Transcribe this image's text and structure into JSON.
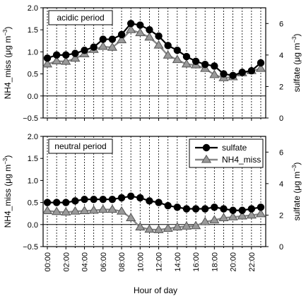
{
  "chart_data": [
    {
      "type": "line",
      "annotation": "acidic period",
      "x": [
        0,
        1,
        2,
        3,
        4,
        5,
        6,
        7,
        8,
        9,
        10,
        11,
        12,
        13,
        14,
        15,
        16,
        17,
        18,
        19,
        20,
        21,
        22,
        23
      ],
      "ylabel_left": "NH4_miss (μg m",
      "ylabel_right": "sulfate (μg m",
      "ylim_left": [
        -0.5,
        2.0
      ],
      "ylim_right": [
        0,
        7
      ],
      "yticks_left": [
        "−0.5",
        "0.0",
        "0.5",
        "1.0",
        "1.5",
        "2.0"
      ],
      "yticks_right": [
        "0",
        "2",
        "4",
        "6"
      ],
      "series": [
        {
          "name": "sulfate",
          "axis": "right",
          "marker": "circle",
          "color": "#000000",
          "values": [
            3.8,
            4.0,
            4.0,
            4.1,
            4.3,
            4.5,
            5.0,
            5.0,
            5.3,
            6.0,
            5.9,
            5.6,
            5.2,
            4.6,
            4.3,
            3.9,
            3.6,
            3.4,
            3.3,
            2.8,
            2.7,
            2.9,
            3.0,
            3.5
          ]
        },
        {
          "name": "NH4_miss",
          "axis": "left",
          "marker": "triangle",
          "color": "#888888",
          "values": [
            0.72,
            0.79,
            0.78,
            0.85,
            0.95,
            1.05,
            1.12,
            1.1,
            1.27,
            1.5,
            1.43,
            1.33,
            1.15,
            0.92,
            0.82,
            0.72,
            0.7,
            0.62,
            0.48,
            0.41,
            0.43,
            0.52,
            0.57,
            0.62
          ]
        }
      ]
    },
    {
      "type": "line",
      "annotation": "neutral period",
      "x": [
        0,
        1,
        2,
        3,
        4,
        5,
        6,
        7,
        8,
        9,
        10,
        11,
        12,
        13,
        14,
        15,
        16,
        17,
        18,
        19,
        20,
        21,
        22,
        23
      ],
      "xlabel": "Hour of day",
      "xticks": [
        "00:00",
        "02:00",
        "04:00",
        "06:00",
        "08:00",
        "10:00",
        "12:00",
        "14:00",
        "16:00",
        "18:00",
        "20:00",
        "22:00"
      ],
      "ylabel_left": "NH4_miss (μg m",
      "ylabel_right": "sulfate (μg m",
      "ylim_left": [
        -0.5,
        2.0
      ],
      "ylim_right": [
        0,
        7
      ],
      "yticks_left": [
        "−0.5",
        "0.0",
        "0.5",
        "1.0",
        "1.5",
        "2.0"
      ],
      "yticks_right": [
        "0",
        "2",
        "4",
        "6"
      ],
      "legend": {
        "position": "top-right",
        "entries": [
          "sulfate",
          "NH4_miss"
        ]
      },
      "series": [
        {
          "name": "sulfate",
          "axis": "right",
          "marker": "circle",
          "color": "#000000",
          "values": [
            2.8,
            2.8,
            2.8,
            2.9,
            3.0,
            3.0,
            3.0,
            3.0,
            3.1,
            3.2,
            3.1,
            2.9,
            2.8,
            2.6,
            2.5,
            2.4,
            2.4,
            2.4,
            2.5,
            2.4,
            2.3,
            2.3,
            2.4,
            2.5
          ]
        },
        {
          "name": "NH4_miss",
          "axis": "left",
          "marker": "triangle",
          "color": "#888888",
          "values": [
            0.31,
            0.29,
            0.28,
            0.3,
            0.31,
            0.32,
            0.34,
            0.34,
            0.3,
            0.15,
            -0.06,
            -0.11,
            -0.12,
            -0.09,
            -0.06,
            -0.04,
            -0.03,
            0.06,
            0.1,
            0.15,
            0.17,
            0.19,
            0.21,
            0.24
          ]
        }
      ]
    }
  ]
}
